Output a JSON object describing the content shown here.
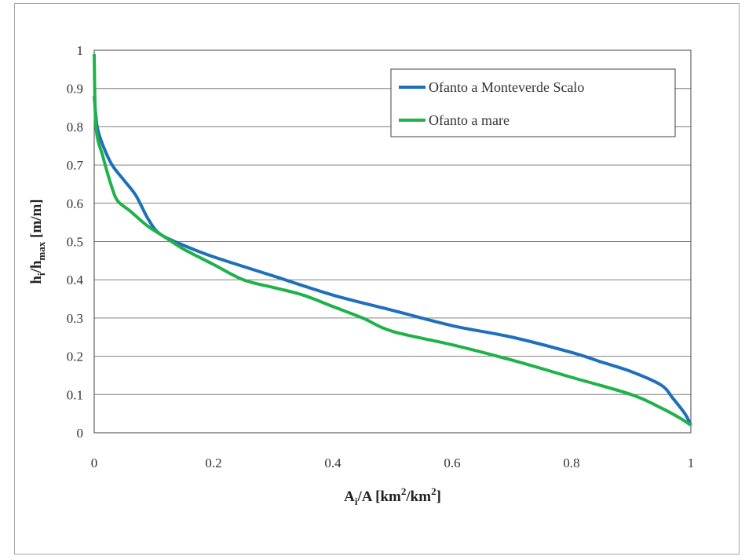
{
  "chart_data": {
    "type": "line",
    "title": "",
    "xlabel": {
      "base": "A",
      "sub": "i",
      "rest": "/A [km",
      "sup1": "2",
      "mid": "/km",
      "sup2": "2",
      "end": "]"
    },
    "ylabel": {
      "base": "h",
      "sub1": "i",
      "mid": "/h",
      "sub2": "max",
      "end": " [m/m]"
    },
    "xlim": [
      0,
      1
    ],
    "ylim": [
      0,
      1
    ],
    "x_ticks": [
      "0",
      "0.2",
      "0.4",
      "0.6",
      "0.8",
      "1"
    ],
    "y_ticks": [
      "0",
      "0.1",
      "0.2",
      "0.3",
      "0.4",
      "0.5",
      "0.6",
      "0.7",
      "0.8",
      "0.9",
      "1"
    ],
    "grid": "horizontal",
    "legend_position": "top-right",
    "series": [
      {
        "name": "Ofanto a Monteverde Scalo",
        "color": "#1f6fba",
        "points": [
          [
            0,
            0.88
          ],
          [
            0.005,
            0.8
          ],
          [
            0.015,
            0.75
          ],
          [
            0.03,
            0.7
          ],
          [
            0.05,
            0.66
          ],
          [
            0.07,
            0.62
          ],
          [
            0.09,
            0.56
          ],
          [
            0.11,
            0.52
          ],
          [
            0.15,
            0.49
          ],
          [
            0.2,
            0.46
          ],
          [
            0.3,
            0.41
          ],
          [
            0.4,
            0.36
          ],
          [
            0.5,
            0.32
          ],
          [
            0.6,
            0.28
          ],
          [
            0.7,
            0.25
          ],
          [
            0.8,
            0.21
          ],
          [
            0.85,
            0.185
          ],
          [
            0.9,
            0.16
          ],
          [
            0.95,
            0.125
          ],
          [
            0.97,
            0.09
          ],
          [
            0.99,
            0.05
          ],
          [
            1.0,
            0.02
          ]
        ]
      },
      {
        "name": "Ofanto a mare",
        "color": "#1fb24a",
        "points": [
          [
            0,
            0.99
          ],
          [
            0.003,
            0.8
          ],
          [
            0.015,
            0.72
          ],
          [
            0.03,
            0.64
          ],
          [
            0.04,
            0.605
          ],
          [
            0.06,
            0.58
          ],
          [
            0.09,
            0.54
          ],
          [
            0.12,
            0.51
          ],
          [
            0.15,
            0.48
          ],
          [
            0.2,
            0.44
          ],
          [
            0.25,
            0.4
          ],
          [
            0.3,
            0.38
          ],
          [
            0.35,
            0.36
          ],
          [
            0.4,
            0.33
          ],
          [
            0.45,
            0.3
          ],
          [
            0.5,
            0.265
          ],
          [
            0.6,
            0.23
          ],
          [
            0.7,
            0.19
          ],
          [
            0.8,
            0.145
          ],
          [
            0.9,
            0.1
          ],
          [
            0.95,
            0.065
          ],
          [
            0.98,
            0.04
          ],
          [
            1.0,
            0.02
          ]
        ]
      }
    ]
  }
}
